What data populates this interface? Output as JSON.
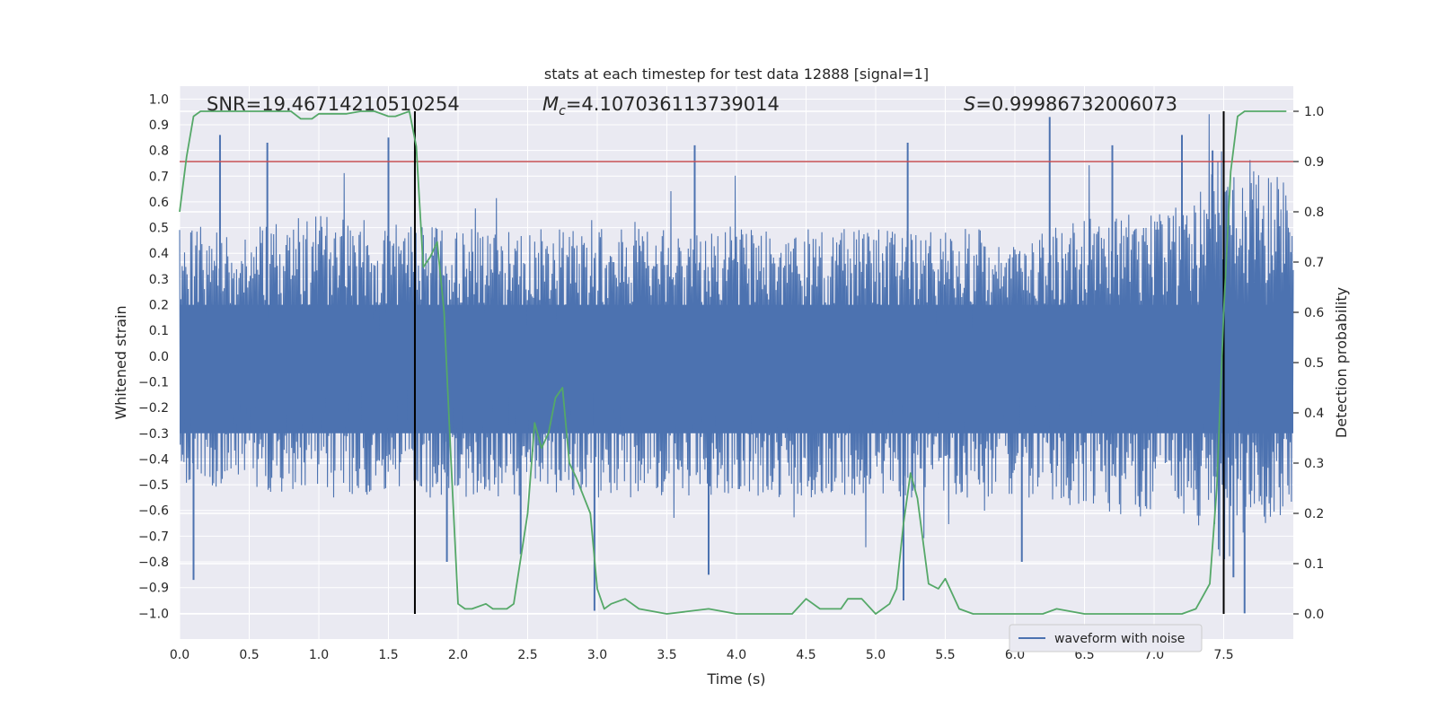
{
  "chart_data": {
    "type": "line",
    "title": "stats at each timestep for test data 12888 [signal=1]",
    "xlabel": "Time (s)",
    "ylabel": "Whitened strain",
    "y2label": "Detection probability",
    "xlim": [
      0.0,
      8.0
    ],
    "ylim": [
      -1.1,
      1.05
    ],
    "y2lim": [
      -0.05,
      1.05
    ],
    "x_ticks": [
      "0.0",
      "0.5",
      "1.0",
      "1.5",
      "2.0",
      "2.5",
      "3.0",
      "3.5",
      "4.0",
      "4.5",
      "5.0",
      "5.5",
      "6.0",
      "6.5",
      "7.0",
      "7.5"
    ],
    "y_ticks": [
      "1.0",
      "0.9",
      "0.8",
      "0.7",
      "0.6",
      "0.5",
      "0.4",
      "0.3",
      "0.2",
      "0.1",
      "0.0",
      "−0.1",
      "−0.2",
      "−0.3",
      "−0.4",
      "−0.5",
      "−0.6",
      "−0.7",
      "−0.8",
      "−0.9",
      "−1.0"
    ],
    "y2_ticks": [
      "1.0",
      "0.9",
      "0.8",
      "0.7",
      "0.6",
      "0.5",
      "0.4",
      "0.3",
      "0.2",
      "0.1",
      "0.0"
    ],
    "annotations": {
      "snr": "SNR=19.46714210510254",
      "mc_symbol": "M",
      "mc_sub": "c",
      "mc_value": "=4.107036113739014",
      "s_symbol": "S",
      "s_value": "=0.99986732006073"
    },
    "threshold": {
      "value": 0.9,
      "axis": "y2",
      "color": "#c44e52"
    },
    "vlines": [
      1.69,
      7.5
    ],
    "legend": {
      "label": "waveform with noise",
      "placement": "lower-right"
    },
    "series": [
      {
        "name": "waveform with noise",
        "axis": "y",
        "color": "#4c72b0",
        "kind": "noise",
        "envelope": [
          {
            "x": 0.0,
            "top": 0.45,
            "bottom": -0.45
          },
          {
            "x": 1.0,
            "top": 0.5,
            "bottom": -0.5
          },
          {
            "x": 2.0,
            "top": 0.45,
            "bottom": -0.5
          },
          {
            "x": 4.0,
            "top": 0.45,
            "bottom": -0.5
          },
          {
            "x": 6.0,
            "top": 0.45,
            "bottom": -0.5
          },
          {
            "x": 7.3,
            "top": 0.55,
            "bottom": -0.6
          },
          {
            "x": 7.5,
            "top": 0.75,
            "bottom": -0.75
          },
          {
            "x": 8.0,
            "top": 0.6,
            "bottom": -0.55
          }
        ],
        "spikes": [
          {
            "x": 0.1,
            "y": -0.87
          },
          {
            "x": 0.29,
            "y": 0.86
          },
          {
            "x": 0.63,
            "y": 0.83
          },
          {
            "x": 1.5,
            "y": 0.85
          },
          {
            "x": 1.92,
            "y": -0.8
          },
          {
            "x": 2.45,
            "y": -0.77
          },
          {
            "x": 2.98,
            "y": -0.99
          },
          {
            "x": 3.7,
            "y": 0.82
          },
          {
            "x": 3.8,
            "y": -0.85
          },
          {
            "x": 5.2,
            "y": -0.95
          },
          {
            "x": 5.23,
            "y": 0.83
          },
          {
            "x": 6.25,
            "y": 0.93
          },
          {
            "x": 6.7,
            "y": 0.82
          },
          {
            "x": 7.2,
            "y": 0.86
          },
          {
            "x": 7.57,
            "y": -0.86
          },
          {
            "x": 7.65,
            "y": -1.0
          },
          {
            "x": 7.42,
            "y": 0.8
          },
          {
            "x": 6.05,
            "y": -0.8
          }
        ]
      },
      {
        "name": "detection probability",
        "axis": "y2",
        "color": "#55a868",
        "x": [
          0.0,
          0.05,
          0.1,
          0.15,
          0.2,
          0.3,
          0.5,
          0.7,
          0.8,
          0.87,
          0.95,
          1.0,
          1.1,
          1.2,
          1.3,
          1.4,
          1.5,
          1.55,
          1.6,
          1.65,
          1.7,
          1.75,
          1.8,
          1.85,
          1.9,
          1.95,
          2.0,
          2.05,
          2.1,
          2.2,
          2.25,
          2.35,
          2.4,
          2.5,
          2.55,
          2.6,
          2.65,
          2.7,
          2.75,
          2.8,
          2.85,
          2.95,
          3.0,
          3.05,
          3.1,
          3.2,
          3.3,
          3.5,
          3.8,
          4.0,
          4.3,
          4.4,
          4.5,
          4.6,
          4.75,
          4.8,
          4.9,
          5.0,
          5.1,
          5.15,
          5.2,
          5.25,
          5.3,
          5.38,
          5.45,
          5.5,
          5.6,
          5.7,
          6.0,
          6.2,
          6.3,
          6.5,
          7.0,
          7.2,
          7.3,
          7.4,
          7.45,
          7.5,
          7.55,
          7.6,
          7.65,
          7.7,
          7.8,
          7.95
        ],
        "y": [
          0.8,
          0.91,
          0.99,
          1.0,
          1.0,
          1.0,
          1.0,
          1.0,
          1.0,
          0.985,
          0.985,
          0.995,
          0.995,
          0.995,
          1.0,
          1.0,
          0.99,
          0.99,
          0.995,
          1.0,
          0.93,
          0.69,
          0.71,
          0.74,
          0.6,
          0.3,
          0.02,
          0.01,
          0.01,
          0.02,
          0.01,
          0.01,
          0.02,
          0.2,
          0.38,
          0.33,
          0.36,
          0.43,
          0.45,
          0.3,
          0.27,
          0.2,
          0.05,
          0.01,
          0.02,
          0.03,
          0.01,
          0.0,
          0.01,
          0.0,
          0.0,
          0.0,
          0.03,
          0.01,
          0.01,
          0.03,
          0.03,
          0.0,
          0.02,
          0.05,
          0.18,
          0.28,
          0.23,
          0.06,
          0.05,
          0.07,
          0.01,
          0.0,
          0.0,
          0.0,
          0.01,
          0.0,
          0.0,
          0.0,
          0.01,
          0.06,
          0.25,
          0.6,
          0.88,
          0.99,
          1.0,
          1.0,
          1.0,
          1.0
        ]
      }
    ]
  }
}
